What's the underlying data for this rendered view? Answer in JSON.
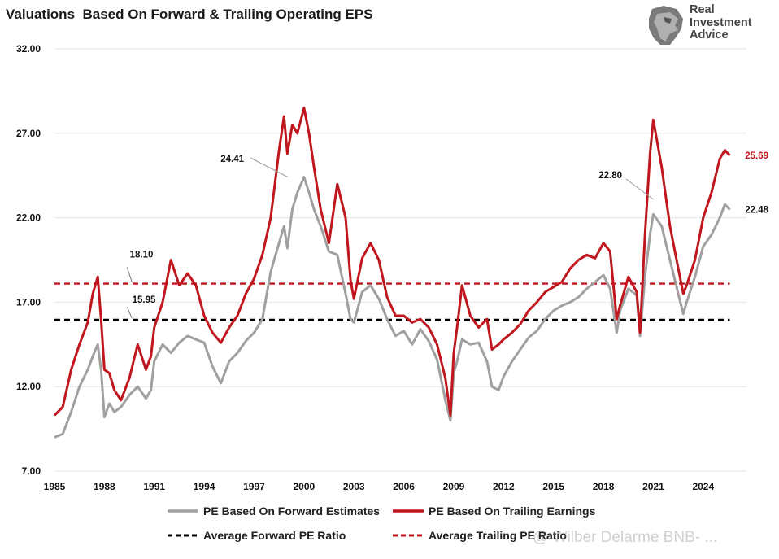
{
  "title": "Valuations  Based On Forward & Trailing Operating EPS",
  "logo": {
    "line1": "Real",
    "line2": "Investment",
    "line3": "Advice"
  },
  "watermark": "@ Wilber Delarme BNB- ...",
  "colors": {
    "forward": "#a0a0a0",
    "trailing": "#c0161d",
    "avg_forward": "#000000",
    "avg_trailing": "#c0161d",
    "axis_text": "#111111",
    "grid": "#e4e4e4"
  },
  "chart_data": {
    "type": "line",
    "ylim": [
      7.0,
      32.0
    ],
    "yticks": [
      "7.00",
      "12.00",
      "17.00",
      "22.00",
      "27.00",
      "32.00"
    ],
    "xlim": [
      1985,
      2026.6
    ],
    "xticks": [
      "1985",
      "1988",
      "1991",
      "1994",
      "1997",
      "2000",
      "2003",
      "2006",
      "2009",
      "2012",
      "2015",
      "2018",
      "2021",
      "2024"
    ],
    "grid": "horizontal",
    "legend_position": "bottom",
    "series": [
      {
        "name": "PE Based On Forward Estimates",
        "x": [
          1985.0,
          1985.5,
          1986.0,
          1986.5,
          1987.0,
          1987.3,
          1987.6,
          1987.8,
          1988.0,
          1988.3,
          1988.6,
          1989.0,
          1989.5,
          1990.0,
          1990.5,
          1990.8,
          1991.0,
          1991.5,
          1992.0,
          1992.5,
          1993.0,
          1993.5,
          1994.0,
          1994.5,
          1995.0,
          1995.5,
          1996.0,
          1996.5,
          1997.0,
          1997.5,
          1998.0,
          1998.5,
          1998.8,
          1999.0,
          1999.3,
          1999.6,
          2000.0,
          2000.3,
          2000.6,
          2001.0,
          2001.5,
          2002.0,
          2002.5,
          2002.8,
          2003.0,
          2003.5,
          2004.0,
          2004.5,
          2005.0,
          2005.5,
          2006.0,
          2006.5,
          2007.0,
          2007.5,
          2008.0,
          2008.5,
          2008.8,
          2009.0,
          2009.2,
          2009.5,
          2010.0,
          2010.5,
          2011.0,
          2011.3,
          2011.7,
          2012.0,
          2012.5,
          2013.0,
          2013.5,
          2014.0,
          2014.5,
          2015.0,
          2015.5,
          2016.0,
          2016.5,
          2017.0,
          2017.5,
          2018.0,
          2018.4,
          2018.8,
          2019.0,
          2019.5,
          2020.0,
          2020.2,
          2020.5,
          2020.8,
          2021.0,
          2021.5,
          2022.0,
          2022.5,
          2022.8,
          2023.0,
          2023.5,
          2024.0,
          2024.5,
          2025.0,
          2025.3,
          2025.6
        ],
        "values": [
          9.0,
          9.2,
          10.5,
          12.0,
          13.0,
          13.8,
          14.5,
          13.0,
          10.2,
          11.0,
          10.5,
          10.8,
          11.5,
          12.0,
          11.3,
          11.8,
          13.5,
          14.5,
          14.0,
          14.6,
          15.0,
          14.8,
          14.6,
          13.2,
          12.2,
          13.5,
          14.0,
          14.7,
          15.2,
          16.0,
          18.8,
          20.5,
          21.5,
          20.2,
          22.5,
          23.5,
          24.41,
          23.5,
          22.5,
          21.5,
          20.0,
          19.8,
          17.5,
          16.0,
          15.8,
          17.6,
          18.0,
          17.2,
          16.0,
          15.0,
          15.3,
          14.5,
          15.4,
          14.7,
          13.6,
          11.2,
          10.0,
          12.8,
          13.5,
          14.8,
          14.5,
          14.6,
          13.5,
          12.0,
          11.8,
          12.6,
          13.5,
          14.2,
          14.9,
          15.3,
          16.0,
          16.5,
          16.8,
          17.0,
          17.3,
          17.8,
          18.2,
          18.6,
          17.8,
          15.2,
          16.5,
          17.8,
          17.4,
          15.0,
          18.5,
          21.0,
          22.2,
          21.5,
          19.5,
          17.5,
          16.3,
          17.0,
          18.5,
          20.3,
          21.0,
          22.0,
          22.8,
          22.48
        ]
      },
      {
        "name": "PE Based On Trailing Earnings",
        "x": [
          1985.0,
          1985.5,
          1986.0,
          1986.5,
          1987.0,
          1987.3,
          1987.6,
          1987.8,
          1988.0,
          1988.3,
          1988.6,
          1989.0,
          1989.5,
          1990.0,
          1990.5,
          1990.8,
          1991.0,
          1991.5,
          1992.0,
          1992.5,
          1993.0,
          1993.5,
          1994.0,
          1994.5,
          1995.0,
          1995.5,
          1996.0,
          1996.5,
          1997.0,
          1997.5,
          1998.0,
          1998.5,
          1998.8,
          1999.0,
          1999.3,
          1999.6,
          2000.0,
          2000.3,
          2000.6,
          2001.0,
          2001.5,
          2002.0,
          2002.5,
          2002.8,
          2003.0,
          2003.5,
          2004.0,
          2004.5,
          2005.0,
          2005.5,
          2006.0,
          2006.5,
          2007.0,
          2007.5,
          2008.0,
          2008.5,
          2008.8,
          2009.0,
          2009.2,
          2009.5,
          2010.0,
          2010.5,
          2011.0,
          2011.3,
          2011.7,
          2012.0,
          2012.5,
          2013.0,
          2013.5,
          2014.0,
          2014.5,
          2015.0,
          2015.5,
          2016.0,
          2016.5,
          2017.0,
          2017.5,
          2018.0,
          2018.4,
          2018.8,
          2019.0,
          2019.5,
          2020.0,
          2020.2,
          2020.5,
          2020.8,
          2021.0,
          2021.5,
          2022.0,
          2022.5,
          2022.8,
          2023.0,
          2023.5,
          2024.0,
          2024.5,
          2025.0,
          2025.3,
          2025.6
        ],
        "values": [
          10.3,
          10.8,
          13.0,
          14.5,
          15.8,
          17.5,
          18.5,
          16.0,
          13.0,
          12.8,
          11.8,
          11.2,
          12.5,
          14.5,
          13.0,
          13.8,
          15.5,
          17.0,
          19.5,
          18.0,
          18.7,
          18.0,
          16.2,
          15.2,
          14.6,
          15.5,
          16.2,
          17.5,
          18.4,
          19.8,
          22.0,
          26.0,
          28.0,
          25.8,
          27.5,
          27.0,
          28.5,
          27.0,
          25.0,
          22.5,
          20.5,
          24.0,
          22.0,
          18.3,
          17.2,
          19.6,
          20.5,
          19.5,
          17.3,
          16.2,
          16.2,
          15.8,
          16.0,
          15.5,
          14.5,
          12.5,
          10.3,
          14.0,
          15.5,
          18.0,
          16.2,
          15.5,
          16.0,
          14.2,
          14.5,
          14.8,
          15.2,
          15.7,
          16.5,
          17.0,
          17.6,
          17.9,
          18.2,
          19.0,
          19.5,
          19.8,
          19.6,
          20.5,
          20.0,
          16.0,
          16.8,
          18.5,
          17.6,
          15.2,
          21.0,
          25.8,
          27.8,
          25.0,
          21.5,
          19.0,
          17.5,
          18.0,
          19.5,
          22.0,
          23.5,
          25.5,
          26.0,
          25.69
        ]
      },
      {
        "name": "Average Forward PE Ratio",
        "value": 15.95,
        "style": "dashed"
      },
      {
        "name": "Average Trailing PE Ratio",
        "value": 18.1,
        "style": "dashed"
      }
    ],
    "annotations": [
      {
        "text": "24.41",
        "x": 2000.0,
        "y": 24.41
      },
      {
        "text": "22.80",
        "x": 2021.0,
        "y": 22.8
      },
      {
        "text": "25.69",
        "x": 2025.6,
        "y": 25.69
      },
      {
        "text": "22.48",
        "x": 2025.6,
        "y": 22.48
      },
      {
        "text": "18.10",
        "x": 1990.0,
        "y": 18.1
      },
      {
        "text": "15.95",
        "x": 1990.0,
        "y": 15.95
      }
    ]
  }
}
